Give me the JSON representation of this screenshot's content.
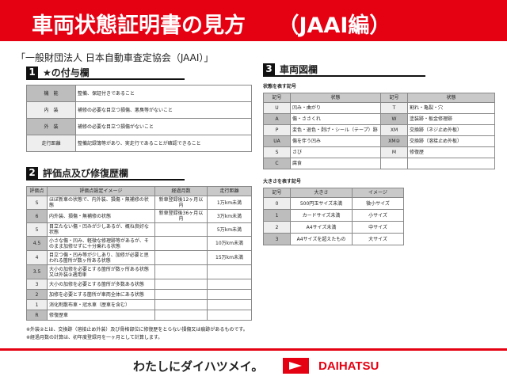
{
  "header": {
    "title": "車両状態証明書の見方　　（JAAI編）"
  },
  "subtitle": "「一般財団法人 日本自動車査定協会（JAAI）」",
  "section1": {
    "num": "1",
    "title": "★の付与欄",
    "rows": [
      {
        "k": "機　能",
        "v": "整備、保証付きであること"
      },
      {
        "k": "内　装",
        "v": "補修の必要な目立つ損傷、悪臭等がないこと"
      },
      {
        "k": "外　装",
        "v": "補修の必要な目立つ損傷がないこと"
      },
      {
        "k": "走行距離",
        "v": "整備記録簿等があり、実走行であることが確認できること"
      }
    ]
  },
  "section2": {
    "num": "2",
    "title": "評価点及び修復歴欄",
    "headers": [
      "評価点",
      "評価点設定イメージ",
      "経過月数",
      "走行距離"
    ],
    "rows": [
      [
        "S",
        "ほぼ新車の状態で、内外装、損傷・無補修の状態",
        "新車登録後12ヶ月以内",
        "1万km未満"
      ],
      [
        "6",
        "内外装、損傷・無補修の状態",
        "新車登録後36ヶ月以内",
        "3万km未満"
      ],
      [
        "5",
        "目立たない傷・凹みが少しあるが、概ね良好な状態",
        "",
        "5万km未満"
      ],
      [
        "4.5",
        "小さな傷・凹み、軽微な修理跡等があるが、そのまま加修せずに十分乗れる状態",
        "",
        "10万km未満"
      ],
      [
        "4",
        "目立つ傷・凹み等が少しあり、加修が必要と思われる箇所が数ヶ所ある状態",
        "",
        "15万km未満"
      ],
      [
        "3.5",
        "大小の加修を必要とする箇所が数ヶ所ある状態又は外装②適用車",
        "",
        ""
      ],
      [
        "3",
        "大小の加修を必要とする箇所が多数ある状態",
        "",
        ""
      ],
      [
        "2",
        "加修を必要とする箇所が車両全体にある状態",
        "",
        ""
      ],
      [
        "1",
        "消化剤散布車・冠水車（歴車を含む）",
        "",
        ""
      ],
      [
        "R",
        "修復歴車",
        "",
        ""
      ]
    ],
    "notes": [
      "※外装②とは、交換跡（溶接止め外装）及び骨格部位に修復歴をとらない損傷又は痕跡があるものです。",
      "※経過月数の計算は、初年度登録月を一ヶ月として計算します。"
    ]
  },
  "section3": {
    "num": "3",
    "title": "車両図欄",
    "state_label": "状態を表す記号",
    "state_headers": [
      "記号",
      "状態",
      "記号",
      "状態"
    ],
    "state_rows": [
      [
        "U",
        "凹み・曲がり",
        "T",
        "割れ・亀裂・穴"
      ],
      [
        "A",
        "傷・ささくれ",
        "W",
        "塗装跡・板金修理跡"
      ],
      [
        "P",
        "変色・退色・剥げ・シール（テープ）跡",
        "XM",
        "交換跡（ネジ止め外板）"
      ],
      [
        "UA",
        "傷を伴う凹み",
        "XM②",
        "交換跡（溶接止め外板）"
      ],
      [
        "S",
        "さび",
        "M",
        "修復歴"
      ],
      [
        "C",
        "腐食",
        "",
        ""
      ]
    ],
    "size_label": "大きさを表す記号",
    "size_headers": [
      "記号",
      "大きさ",
      "イメージ"
    ],
    "size_rows": [
      [
        "0",
        "500円玉サイズ未満",
        "微小サイズ"
      ],
      [
        "1",
        "カードサイズ未満",
        "小サイズ"
      ],
      [
        "2",
        "A4サイズ未満",
        "中サイズ"
      ],
      [
        "3",
        "A4サイズを超えたもの",
        "大サイズ"
      ]
    ]
  },
  "footer": {
    "slogan": "わたしにダイハツメイ。",
    "brand": "DAIHATSU"
  },
  "colors": {
    "brand_red": "#e50012"
  }
}
